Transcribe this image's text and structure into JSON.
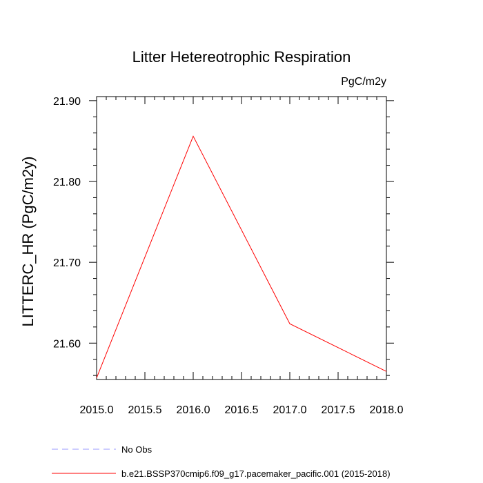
{
  "chart_data": {
    "type": "line",
    "title": "Litter Hetereotrophic Respiration",
    "units_label": "PgC/m2y",
    "ylabel": "LITTERC_HR  (PgC/m2y)",
    "xlabel": "",
    "xlim": [
      2015.0,
      2018.0
    ],
    "ylim": [
      21.555,
      21.905
    ],
    "x_ticks": [
      "2015.0",
      "2015.5",
      "2016.0",
      "2016.5",
      "2017.0",
      "2017.5",
      "2018.0"
    ],
    "x_tick_values": [
      2015.0,
      2015.5,
      2016.0,
      2016.5,
      2017.0,
      2017.5,
      2018.0
    ],
    "y_ticks": [
      "21.60",
      "21.70",
      "21.80",
      "21.90"
    ],
    "y_tick_values": [
      21.6,
      21.7,
      21.8,
      21.9
    ],
    "series": [
      {
        "name": "b.e21.BSSP370cmip6.f09_g17.pacemaker_pacific.001 (2015-2018)",
        "color": "#ff0000",
        "style": "solid",
        "x": [
          2015,
          2016,
          2017,
          2018
        ],
        "y": [
          21.557,
          21.856,
          21.624,
          21.565
        ]
      }
    ],
    "legend": [
      {
        "label": "No Obs",
        "color": "#9999ff",
        "style": "dashed"
      },
      {
        "label": "b.e21.BSSP370cmip6.f09_g17.pacemaker_pacific.001 (2015-2018)",
        "color": "#ff0000",
        "style": "solid"
      }
    ],
    "legend_position": "bottom-left",
    "grid": false
  }
}
